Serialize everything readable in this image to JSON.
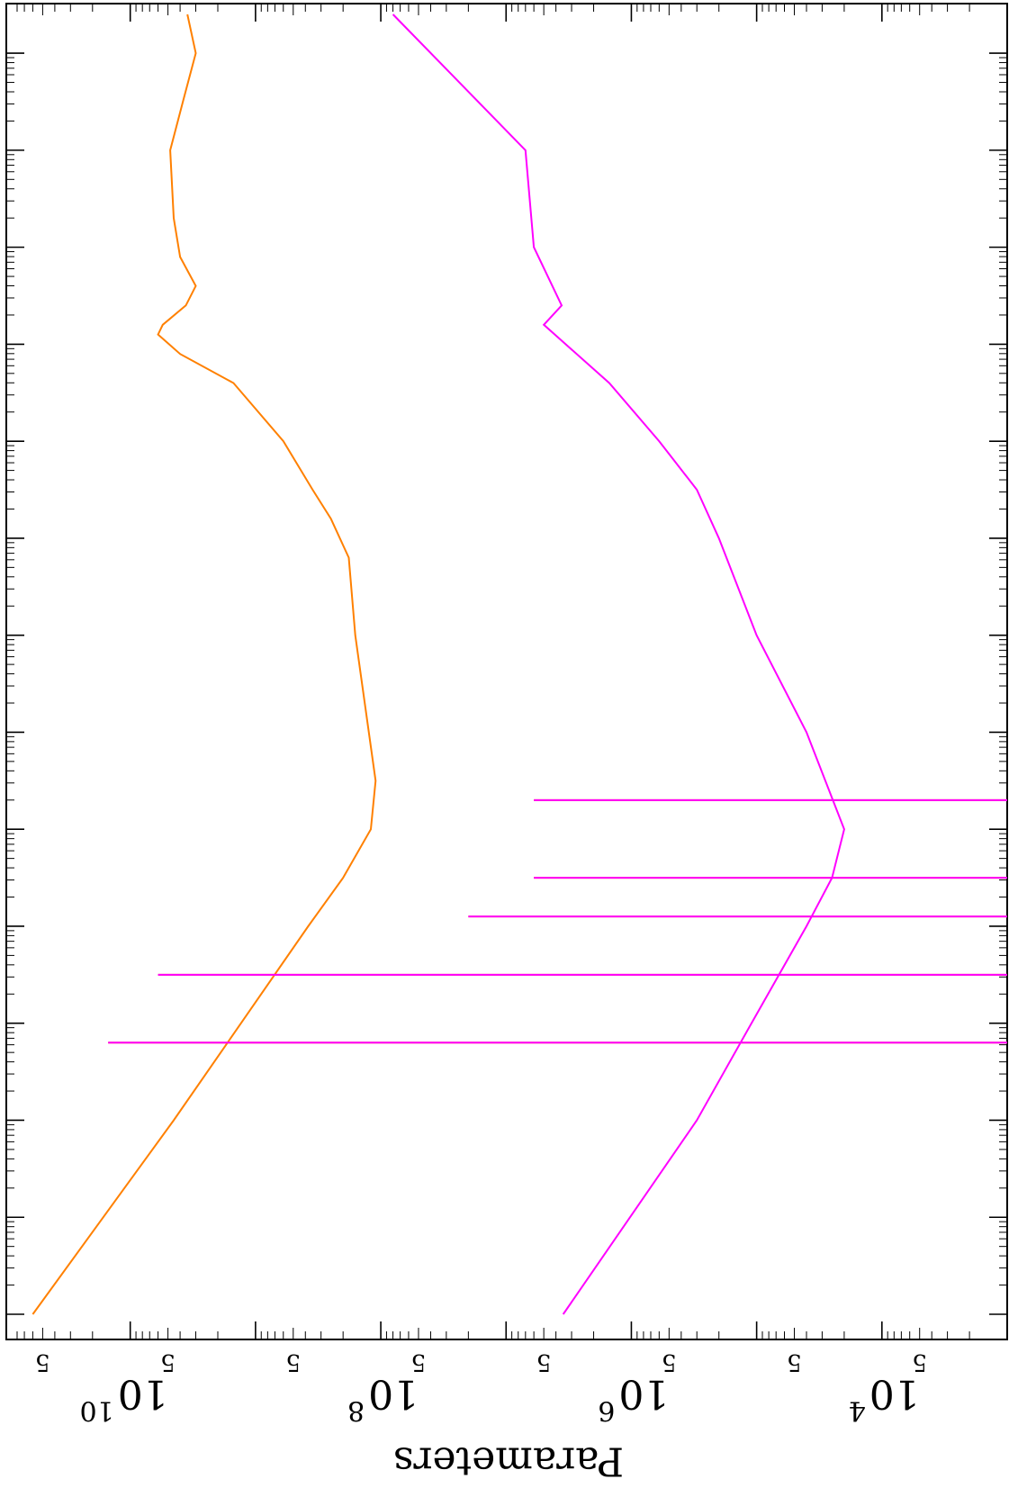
{
  "chart_data": {
    "type": "line",
    "rotated": true,
    "ylabel": "Parameters",
    "y_scale": "log",
    "ylim": [
      1000,
      80000000000
    ],
    "y_major_ticks": [
      {
        "value": 10000,
        "base": "10",
        "exp": "4"
      },
      {
        "value": 1000000,
        "base": "10",
        "exp": "6"
      },
      {
        "value": 100000000,
        "base": "10",
        "exp": "8"
      },
      {
        "value": 10000000000,
        "base": "10",
        "exp": "10"
      }
    ],
    "y_minor_labels": [
      {
        "value": 5000,
        "label": "5"
      },
      {
        "value": 50000,
        "label": "5"
      },
      {
        "value": 500000,
        "label": "5"
      },
      {
        "value": 5000000,
        "label": "5"
      },
      {
        "value": 50000000,
        "label": "5"
      },
      {
        "value": 500000000,
        "label": "5"
      },
      {
        "value": 5000000000,
        "label": "5"
      },
      {
        "value": 50000000000,
        "label": "5"
      }
    ],
    "x_scale": "log",
    "x_decades": 13,
    "xlim": [
      0,
      13.4
    ],
    "grid": false,
    "series": [
      {
        "color": "#ff8000",
        "dash": "solid",
        "points": [
          [
            0,
            60000000000
          ],
          [
            2.0,
            4500000000
          ],
          [
            4.0,
            380000000
          ],
          [
            4.5,
            200000000
          ],
          [
            5.0,
            120000000
          ],
          [
            5.5,
            110000000
          ],
          [
            7.0,
            160000000
          ],
          [
            7.8,
            180000000
          ],
          [
            8.2,
            250000000
          ],
          [
            8.5,
            350000000
          ],
          [
            9.0,
            600000000
          ],
          [
            9.6,
            1500000000
          ],
          [
            9.9,
            4000000000
          ],
          [
            10.1,
            6000000000
          ],
          [
            10.2,
            5500000000
          ],
          [
            10.4,
            3600000000
          ],
          [
            10.6,
            3000000000
          ],
          [
            10.9,
            4000000000
          ],
          [
            11.3,
            4500000000
          ],
          [
            12.0,
            4800000000
          ],
          [
            12.5,
            3800000000
          ],
          [
            13.0,
            3000000000
          ],
          [
            13.4,
            3500000000
          ]
        ],
        "spikes": [
          [
            2.8,
            15000000000
          ],
          [
            3.5,
            6000000000
          ],
          [
            4.1,
            20000000
          ],
          [
            4.5,
            6000000
          ],
          [
            5.3,
            6000000
          ]
        ]
      },
      {
        "color": "#ff00ff",
        "dash": "solid",
        "points": [
          [
            0,
            3500000
          ],
          [
            2.0,
            300000
          ],
          [
            3.0,
            110000
          ],
          [
            4.0,
            40000
          ],
          [
            4.5,
            25000
          ],
          [
            5.0,
            20000
          ],
          [
            6.0,
            40000
          ],
          [
            7.0,
            100000
          ],
          [
            8.0,
            200000
          ],
          [
            8.5,
            300000
          ],
          [
            9.0,
            600000
          ],
          [
            9.6,
            1500000
          ],
          [
            10.2,
            5000000
          ],
          [
            10.4,
            3600000
          ],
          [
            11.0,
            6000000
          ],
          [
            12.0,
            7000000
          ],
          [
            13.4,
            80000000
          ]
        ],
        "spikes": [
          [
            2.8,
            15000000000
          ],
          [
            3.5,
            6000000000
          ],
          [
            4.1,
            20000000
          ],
          [
            4.5,
            6000000
          ],
          [
            5.3,
            6000000
          ]
        ]
      }
    ]
  }
}
